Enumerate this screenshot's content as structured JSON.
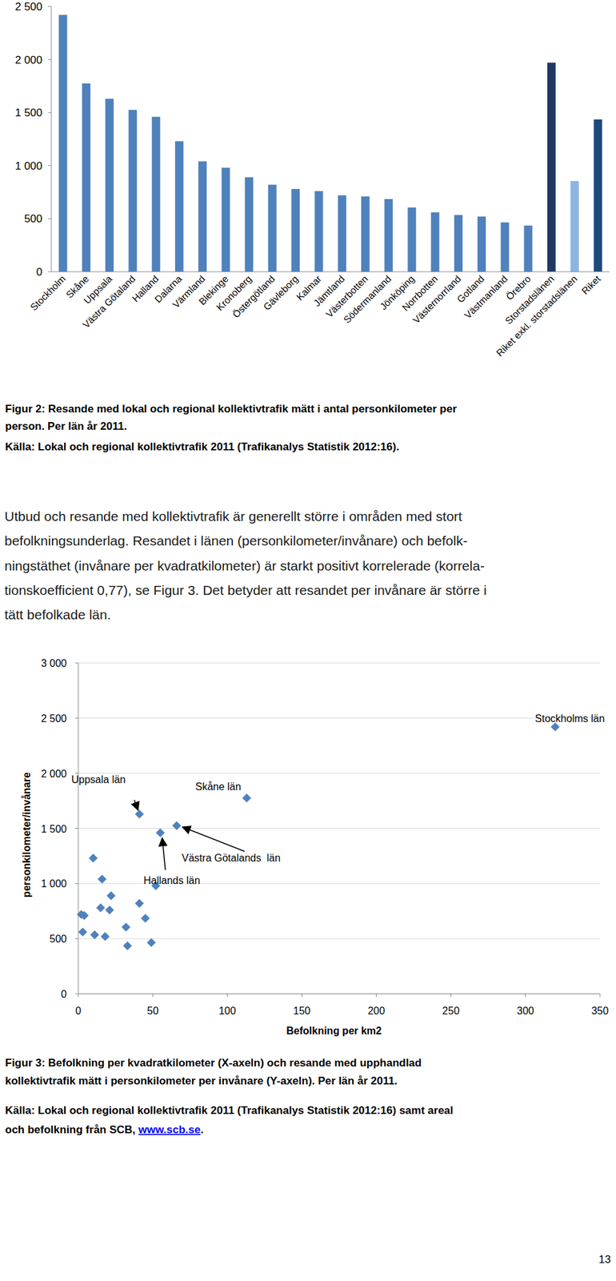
{
  "chart_data": [
    {
      "type": "bar",
      "categories": [
        "Stockholm",
        "Skåne",
        "Uppsala",
        "Västra Götaland",
        "Halland",
        "Dalarna",
        "Värmland",
        "Blekinge",
        "Kronoberg",
        "Östergötland",
        "Gävleborg",
        "Kalmar",
        "Jämtland",
        "Västerbotten",
        "Södermanland",
        "Jönköping",
        "Norrbotten",
        "Västernorrland",
        "Gotland",
        "Västmanland",
        "Örebro",
        "Storstadslänen",
        "Riket exkl. storstadslänen",
        "Riket"
      ],
      "values": [
        2420,
        1775,
        1630,
        1525,
        1460,
        1230,
        1040,
        980,
        890,
        820,
        780,
        760,
        720,
        710,
        685,
        605,
        560,
        535,
        520,
        465,
        435,
        1970,
        855,
        1435
      ],
      "colors": [
        "#4f81bd",
        "#4f81bd",
        "#4f81bd",
        "#4f81bd",
        "#4f81bd",
        "#4f81bd",
        "#4f81bd",
        "#4f81bd",
        "#4f81bd",
        "#4f81bd",
        "#4f81bd",
        "#4f81bd",
        "#4f81bd",
        "#4f81bd",
        "#4f81bd",
        "#4f81bd",
        "#4f81bd",
        "#4f81bd",
        "#4f81bd",
        "#4f81bd",
        "#4f81bd",
        "#1f3864",
        "#8db4e2",
        "#1f497d"
      ],
      "ylim": [
        0,
        2500
      ],
      "yticks": [
        0,
        500,
        {
          "value": 1000,
          "label": "1 000"
        },
        {
          "value": 1500,
          "label": "1 500"
        },
        {
          "value": 2000,
          "label": "2 000"
        },
        {
          "value": 2500,
          "label": "2 500"
        }
      ],
      "grid": false
    },
    {
      "type": "scatter",
      "x_label": "Befolkning per km2",
      "y_label": "personkilometer/invånare",
      "x": [
        320,
        113,
        41,
        66,
        55,
        10,
        16,
        52,
        22,
        41,
        15,
        21,
        2,
        4,
        45,
        32,
        3,
        11,
        18,
        49,
        33
      ],
      "values": [
        2420,
        1775,
        1630,
        1525,
        1460,
        1230,
        1040,
        980,
        890,
        820,
        780,
        760,
        720,
        710,
        685,
        605,
        560,
        535,
        520,
        465,
        435
      ],
      "point_labels": [
        "Stockholms län",
        "Skåne län",
        "Uppsala län",
        "Västra Götalands  län",
        "Hallands län",
        null,
        null,
        null,
        null,
        null,
        null,
        null,
        null,
        null,
        null,
        null,
        null,
        null,
        null,
        null,
        null
      ],
      "color": "#4f81bd",
      "marker": "diamond",
      "xlim": [
        0,
        350
      ],
      "xticks": [
        0,
        50,
        100,
        150,
        200,
        250,
        300,
        350
      ],
      "ylim": [
        0,
        3000
      ],
      "yticks": [
        0,
        500,
        {
          "value": 1000,
          "label": "1 000"
        },
        {
          "value": 1500,
          "label": "1 500"
        },
        {
          "value": 2000,
          "label": "2 000"
        },
        {
          "value": 2500,
          "label": "2 500"
        },
        {
          "value": 3000,
          "label": "3 000"
        }
      ],
      "grid": true
    }
  ],
  "page": {
    "figure2_caption": [
      "Figur 2: Resande med lokal och regional kollektivtrafik mätt i antal personkilometer per",
      "person. Per län år 2011."
    ],
    "figure2_source": "Källa: Lokal och regional kollektivtrafik 2011 (Trafikanalys Statistik 2012:16).",
    "paragraph": [
      "Utbud och resande med kollektivtrafik är generellt större i områden med stort",
      "befolkningsunderlag. Resandet i länen (personkilometer/invånare) och befolk-",
      "ningstäthet (invånare per kvadratkilometer) är starkt positivt korrelerade (korrela-",
      "tionskoefficient 0,77), se Figur 3. Det betyder att resandet per invånare är större i",
      "tätt befolkade län."
    ],
    "figure3_caption": [
      "Figur 3: Befolkning per kvadratkilometer (X-axeln) och resande med upphandlad",
      "kollektivtrafik mätt i personkilometer per invånare (Y-axeln). Per län år 2011."
    ],
    "figure3_source": [
      "Källa: Lokal och regional kollektivtrafik 2011 (Trafikanalys Statistik 2012:16) samt areal",
      "och befolkning från SCB, "
    ],
    "figure3_link": "www.scb.se",
    "figure3_end": ".",
    "page_number": "13"
  }
}
